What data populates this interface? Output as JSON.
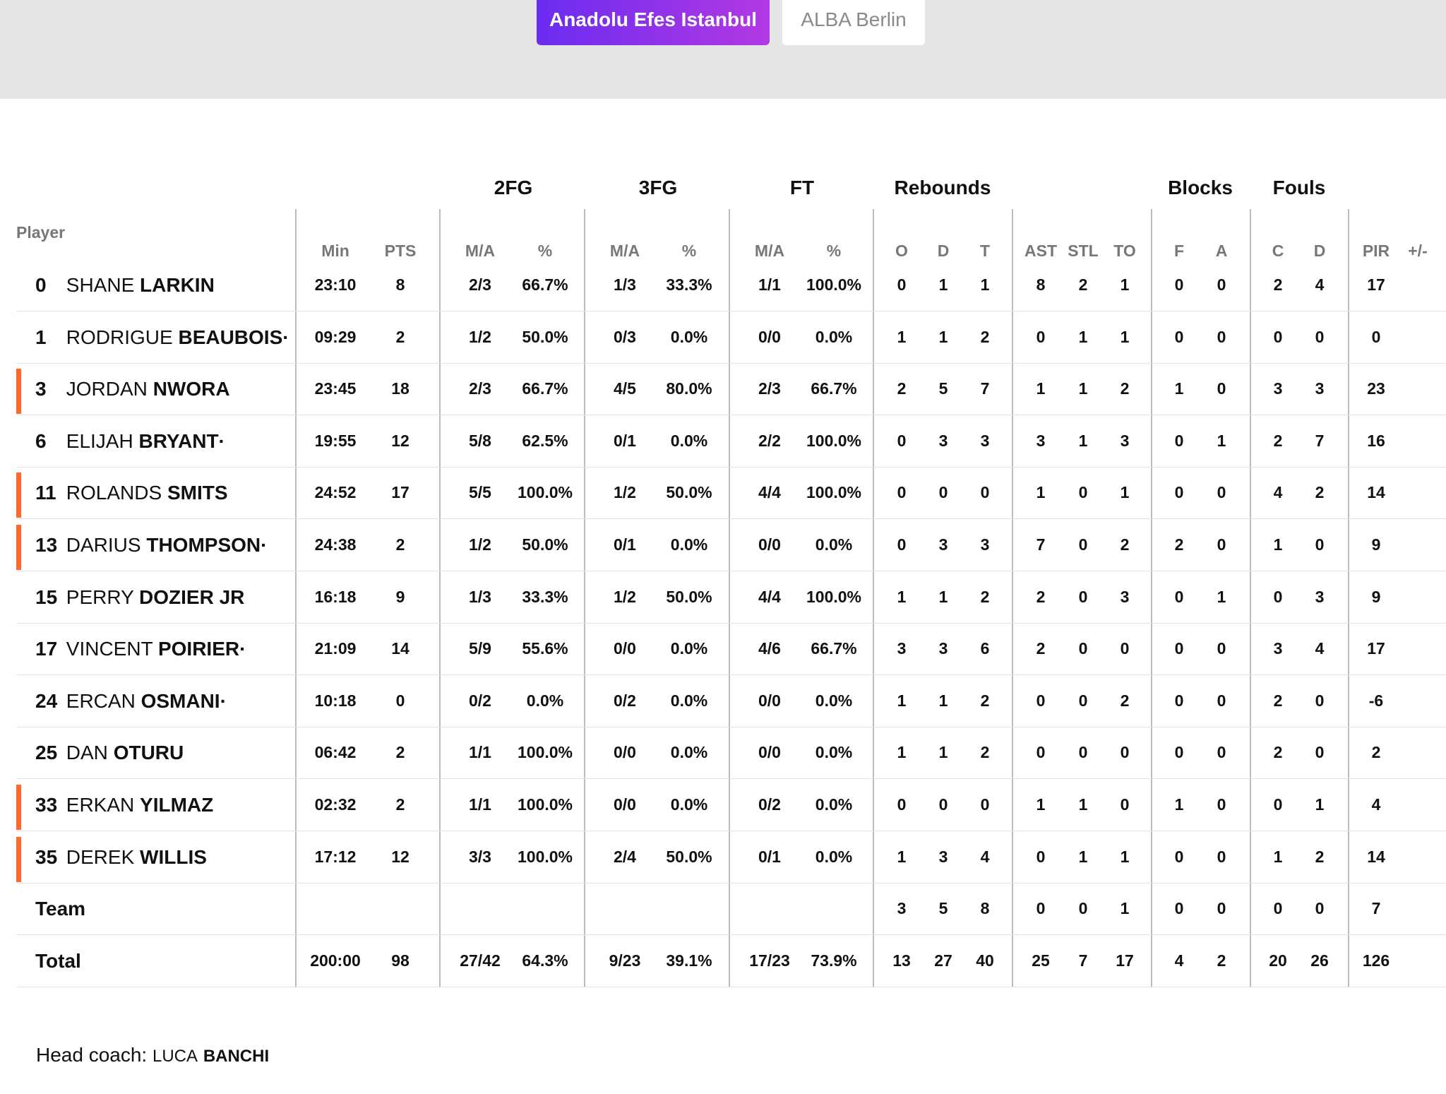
{
  "tabs": [
    {
      "label": "Anadolu Efes Istanbul",
      "active": true
    },
    {
      "label": "ALBA Berlin",
      "active": false
    }
  ],
  "colors": {
    "active_tab_start": "#6a2cf0",
    "active_tab_end": "#b339e3",
    "starter_marker": "#ff6a2b"
  },
  "table": {
    "player_header": "Player",
    "groups": {
      "fg2": "2FG",
      "fg3": "3FG",
      "ft": "FT",
      "reb": "Rebounds",
      "blk": "Blocks",
      "fouls": "Fouls"
    },
    "subheaders": {
      "min": "Min",
      "pts": "PTS",
      "fg2_ma": "M/A",
      "fg2_pct": "%",
      "fg3_ma": "M/A",
      "fg3_pct": "%",
      "ft_ma": "M/A",
      "ft_pct": "%",
      "reb_o": "O",
      "reb_d": "D",
      "reb_t": "T",
      "ast": "AST",
      "stl": "STL",
      "to": "TO",
      "blk_f": "F",
      "blk_a": "A",
      "foul_c": "C",
      "foul_d": "D",
      "pir": "PIR",
      "pm": "+/-"
    },
    "rows": [
      {
        "number": "0",
        "first": "SHANE",
        "last": "LARKIN",
        "starter": false,
        "min": "23:10",
        "pts": "8",
        "fg2_ma": "2/3",
        "fg2_pct": "66.7%",
        "fg3_ma": "1/3",
        "fg3_pct": "33.3%",
        "ft_ma": "1/1",
        "ft_pct": "100.0%",
        "reb_o": "0",
        "reb_d": "1",
        "reb_t": "1",
        "ast": "8",
        "stl": "2",
        "to": "1",
        "blk_f": "0",
        "blk_a": "0",
        "foul_c": "2",
        "foul_d": "4",
        "pir": "17",
        "pm": ""
      },
      {
        "number": "1",
        "first": "RODRIGUE",
        "last": "BEAUBOIS·",
        "starter": false,
        "min": "09:29",
        "pts": "2",
        "fg2_ma": "1/2",
        "fg2_pct": "50.0%",
        "fg3_ma": "0/3",
        "fg3_pct": "0.0%",
        "ft_ma": "0/0",
        "ft_pct": "0.0%",
        "reb_o": "1",
        "reb_d": "1",
        "reb_t": "2",
        "ast": "0",
        "stl": "1",
        "to": "1",
        "blk_f": "0",
        "blk_a": "0",
        "foul_c": "0",
        "foul_d": "0",
        "pir": "0",
        "pm": ""
      },
      {
        "number": "3",
        "first": "JORDAN",
        "last": "NWORA",
        "starter": true,
        "min": "23:45",
        "pts": "18",
        "fg2_ma": "2/3",
        "fg2_pct": "66.7%",
        "fg3_ma": "4/5",
        "fg3_pct": "80.0%",
        "ft_ma": "2/3",
        "ft_pct": "66.7%",
        "reb_o": "2",
        "reb_d": "5",
        "reb_t": "7",
        "ast": "1",
        "stl": "1",
        "to": "2",
        "blk_f": "1",
        "blk_a": "0",
        "foul_c": "3",
        "foul_d": "3",
        "pir": "23",
        "pm": ""
      },
      {
        "number": "6",
        "first": "ELIJAH",
        "last": "BRYANT·",
        "starter": false,
        "min": "19:55",
        "pts": "12",
        "fg2_ma": "5/8",
        "fg2_pct": "62.5%",
        "fg3_ma": "0/1",
        "fg3_pct": "0.0%",
        "ft_ma": "2/2",
        "ft_pct": "100.0%",
        "reb_o": "0",
        "reb_d": "3",
        "reb_t": "3",
        "ast": "3",
        "stl": "1",
        "to": "3",
        "blk_f": "0",
        "blk_a": "1",
        "foul_c": "2",
        "foul_d": "7",
        "pir": "16",
        "pm": ""
      },
      {
        "number": "11",
        "first": "ROLANDS",
        "last": "SMITS",
        "starter": true,
        "min": "24:52",
        "pts": "17",
        "fg2_ma": "5/5",
        "fg2_pct": "100.0%",
        "fg3_ma": "1/2",
        "fg3_pct": "50.0%",
        "ft_ma": "4/4",
        "ft_pct": "100.0%",
        "reb_o": "0",
        "reb_d": "0",
        "reb_t": "0",
        "ast": "1",
        "stl": "0",
        "to": "1",
        "blk_f": "0",
        "blk_a": "0",
        "foul_c": "4",
        "foul_d": "2",
        "pir": "14",
        "pm": ""
      },
      {
        "number": "13",
        "first": "DARIUS",
        "last": "THOMPSON·",
        "starter": true,
        "min": "24:38",
        "pts": "2",
        "fg2_ma": "1/2",
        "fg2_pct": "50.0%",
        "fg3_ma": "0/1",
        "fg3_pct": "0.0%",
        "ft_ma": "0/0",
        "ft_pct": "0.0%",
        "reb_o": "0",
        "reb_d": "3",
        "reb_t": "3",
        "ast": "7",
        "stl": "0",
        "to": "2",
        "blk_f": "2",
        "blk_a": "0",
        "foul_c": "1",
        "foul_d": "0",
        "pir": "9",
        "pm": ""
      },
      {
        "number": "15",
        "first": "PERRY",
        "last": "DOZIER JR",
        "starter": false,
        "min": "16:18",
        "pts": "9",
        "fg2_ma": "1/3",
        "fg2_pct": "33.3%",
        "fg3_ma": "1/2",
        "fg3_pct": "50.0%",
        "ft_ma": "4/4",
        "ft_pct": "100.0%",
        "reb_o": "1",
        "reb_d": "1",
        "reb_t": "2",
        "ast": "2",
        "stl": "0",
        "to": "3",
        "blk_f": "0",
        "blk_a": "1",
        "foul_c": "0",
        "foul_d": "3",
        "pir": "9",
        "pm": ""
      },
      {
        "number": "17",
        "first": "VINCENT",
        "last": "POIRIER·",
        "starter": false,
        "min": "21:09",
        "pts": "14",
        "fg2_ma": "5/9",
        "fg2_pct": "55.6%",
        "fg3_ma": "0/0",
        "fg3_pct": "0.0%",
        "ft_ma": "4/6",
        "ft_pct": "66.7%",
        "reb_o": "3",
        "reb_d": "3",
        "reb_t": "6",
        "ast": "2",
        "stl": "0",
        "to": "0",
        "blk_f": "0",
        "blk_a": "0",
        "foul_c": "3",
        "foul_d": "4",
        "pir": "17",
        "pm": ""
      },
      {
        "number": "24",
        "first": "ERCAN",
        "last": "OSMANI·",
        "starter": false,
        "min": "10:18",
        "pts": "0",
        "fg2_ma": "0/2",
        "fg2_pct": "0.0%",
        "fg3_ma": "0/2",
        "fg3_pct": "0.0%",
        "ft_ma": "0/0",
        "ft_pct": "0.0%",
        "reb_o": "1",
        "reb_d": "1",
        "reb_t": "2",
        "ast": "0",
        "stl": "0",
        "to": "2",
        "blk_f": "0",
        "blk_a": "0",
        "foul_c": "2",
        "foul_d": "0",
        "pir": "-6",
        "pm": ""
      },
      {
        "number": "25",
        "first": "DAN",
        "last": "OTURU",
        "starter": false,
        "min": "06:42",
        "pts": "2",
        "fg2_ma": "1/1",
        "fg2_pct": "100.0%",
        "fg3_ma": "0/0",
        "fg3_pct": "0.0%",
        "ft_ma": "0/0",
        "ft_pct": "0.0%",
        "reb_o": "1",
        "reb_d": "1",
        "reb_t": "2",
        "ast": "0",
        "stl": "0",
        "to": "0",
        "blk_f": "0",
        "blk_a": "0",
        "foul_c": "2",
        "foul_d": "0",
        "pir": "2",
        "pm": ""
      },
      {
        "number": "33",
        "first": "ERKAN",
        "last": "YILMAZ",
        "starter": true,
        "min": "02:32",
        "pts": "2",
        "fg2_ma": "1/1",
        "fg2_pct": "100.0%",
        "fg3_ma": "0/0",
        "fg3_pct": "0.0%",
        "ft_ma": "0/2",
        "ft_pct": "0.0%",
        "reb_o": "0",
        "reb_d": "0",
        "reb_t": "0",
        "ast": "1",
        "stl": "1",
        "to": "0",
        "blk_f": "1",
        "blk_a": "0",
        "foul_c": "0",
        "foul_d": "1",
        "pir": "4",
        "pm": ""
      },
      {
        "number": "35",
        "first": "DEREK",
        "last": "WILLIS",
        "starter": true,
        "min": "17:12",
        "pts": "12",
        "fg2_ma": "3/3",
        "fg2_pct": "100.0%",
        "fg3_ma": "2/4",
        "fg3_pct": "50.0%",
        "ft_ma": "0/1",
        "ft_pct": "0.0%",
        "reb_o": "1",
        "reb_d": "3",
        "reb_t": "4",
        "ast": "0",
        "stl": "1",
        "to": "1",
        "blk_f": "0",
        "blk_a": "0",
        "foul_c": "1",
        "foul_d": "2",
        "pir": "14",
        "pm": ""
      }
    ],
    "team_row": {
      "label": "Team",
      "min": "",
      "pts": "",
      "fg2_ma": "",
      "fg2_pct": "",
      "fg3_ma": "",
      "fg3_pct": "",
      "ft_ma": "",
      "ft_pct": "",
      "reb_o": "3",
      "reb_d": "5",
      "reb_t": "8",
      "ast": "0",
      "stl": "0",
      "to": "1",
      "blk_f": "0",
      "blk_a": "0",
      "foul_c": "0",
      "foul_d": "0",
      "pir": "7",
      "pm": ""
    },
    "total_row": {
      "label": "Total",
      "min": "200:00",
      "pts": "98",
      "fg2_ma": "27/42",
      "fg2_pct": "64.3%",
      "fg3_ma": "9/23",
      "fg3_pct": "39.1%",
      "ft_ma": "17/23",
      "ft_pct": "73.9%",
      "reb_o": "13",
      "reb_d": "27",
      "reb_t": "40",
      "ast": "25",
      "stl": "7",
      "to": "17",
      "blk_f": "4",
      "blk_a": "2",
      "foul_c": "20",
      "foul_d": "26",
      "pir": "126",
      "pm": ""
    }
  },
  "coach": {
    "label": "Head coach:",
    "first": "LUCA",
    "last": "BANCHI"
  }
}
